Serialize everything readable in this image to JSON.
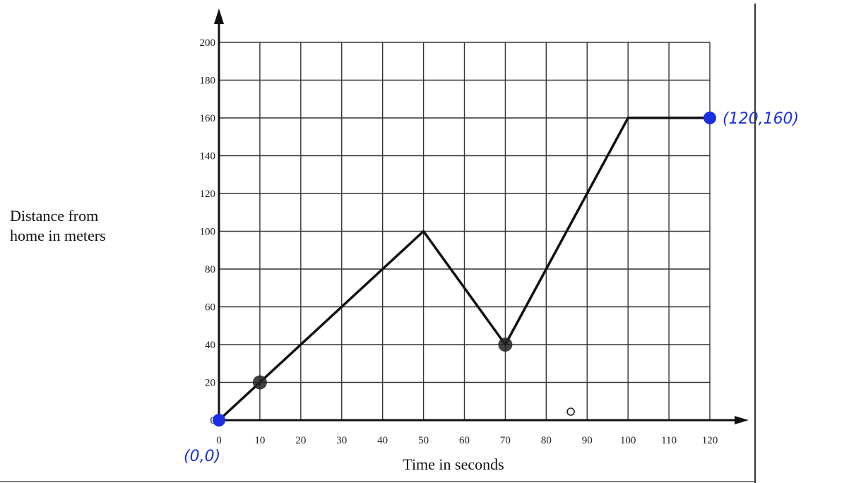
{
  "chart_data": {
    "type": "line",
    "xlabel": "Time in seconds",
    "ylabel_lines": [
      "Distance from",
      "home in meters"
    ],
    "xlim": [
      0,
      120
    ],
    "ylim": [
      0,
      200
    ],
    "x_ticks": [
      0,
      10,
      20,
      30,
      40,
      50,
      60,
      70,
      80,
      90,
      100,
      110,
      120
    ],
    "y_ticks": [
      0,
      20,
      40,
      60,
      80,
      100,
      120,
      140,
      160,
      180,
      200
    ],
    "x_tick_labels": [
      "0",
      "10",
      "20",
      "30",
      "40",
      "50",
      "60",
      "70",
      "80",
      "90",
      "100",
      "110",
      "120"
    ],
    "y_tick_labels": [
      "0",
      "20",
      "40",
      "60",
      "80",
      "100",
      "120",
      "140",
      "160",
      "180",
      "200"
    ],
    "grid": true,
    "series": [
      {
        "x": [
          0,
          50,
          70,
          100,
          120
        ],
        "y": [
          0,
          100,
          40,
          160,
          160
        ],
        "color": "#111111"
      }
    ],
    "marked_points": [
      {
        "x": 10,
        "y": 20,
        "color": "#222222"
      },
      {
        "x": 70,
        "y": 40,
        "color": "#222222"
      },
      {
        "x": 0,
        "y": 0,
        "color": "#1b2fe0"
      },
      {
        "x": 120,
        "y": 160,
        "color": "#1b2fe0"
      }
    ],
    "annotations": [
      {
        "text": "(0,0)",
        "x": 0,
        "y": 0,
        "color": "#1b2fe0"
      },
      {
        "text": "(120,160)",
        "x": 120,
        "y": 160,
        "color": "#1b2fe0"
      }
    ]
  }
}
